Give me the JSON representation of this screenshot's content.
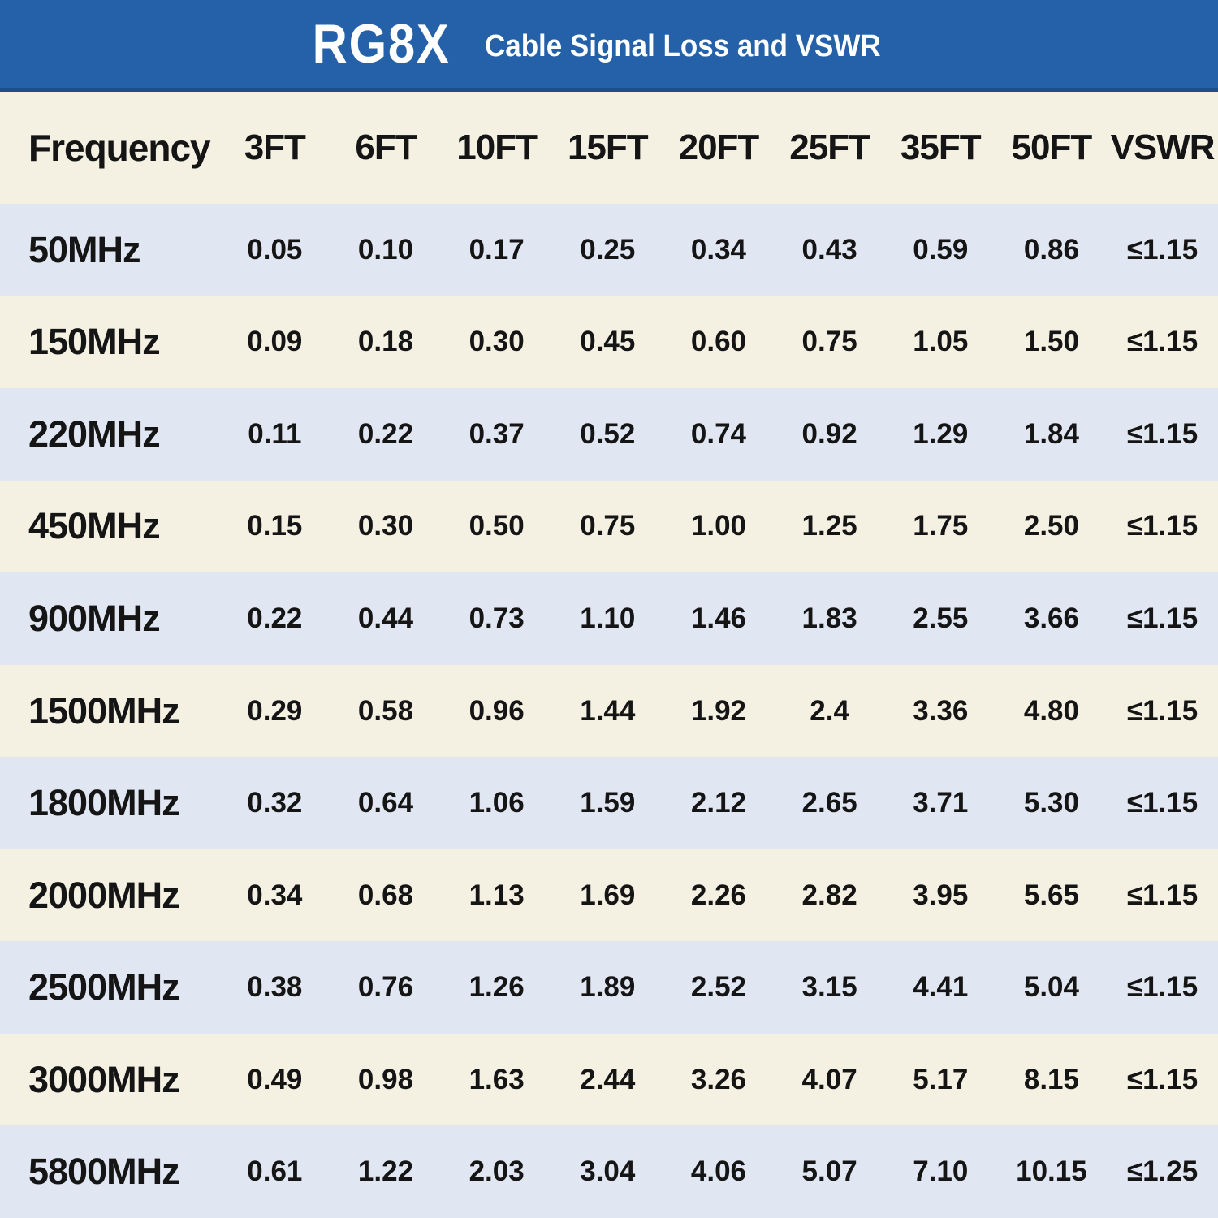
{
  "header": {
    "title": "RG8X",
    "subtitle": "Cable Signal Loss and VSWR"
  },
  "table": {
    "columns": [
      "Frequency",
      "3FT",
      "6FT",
      "10FT",
      "15FT",
      "20FT",
      "25FT",
      "35FT",
      "50FT",
      "VSWR"
    ],
    "rows": [
      {
        "frequency": "50MHz",
        "values": [
          "0.05",
          "0.10",
          "0.17",
          "0.25",
          "0.34",
          "0.43",
          "0.59",
          "0.86",
          "≤1.15"
        ]
      },
      {
        "frequency": "150MHz",
        "values": [
          "0.09",
          "0.18",
          "0.30",
          "0.45",
          "0.60",
          "0.75",
          "1.05",
          "1.50",
          "≤1.15"
        ]
      },
      {
        "frequency": "220MHz",
        "values": [
          "0.11",
          "0.22",
          "0.37",
          "0.52",
          "0.74",
          "0.92",
          "1.29",
          "1.84",
          "≤1.15"
        ]
      },
      {
        "frequency": "450MHz",
        "values": [
          "0.15",
          "0.30",
          "0.50",
          "0.75",
          "1.00",
          "1.25",
          "1.75",
          "2.50",
          "≤1.15"
        ]
      },
      {
        "frequency": "900MHz",
        "values": [
          "0.22",
          "0.44",
          "0.73",
          "1.10",
          "1.46",
          "1.83",
          "2.55",
          "3.66",
          "≤1.15"
        ]
      },
      {
        "frequency": "1500MHz",
        "values": [
          "0.29",
          "0.58",
          "0.96",
          "1.44",
          "1.92",
          "2.4",
          "3.36",
          "4.80",
          "≤1.15"
        ]
      },
      {
        "frequency": "1800MHz",
        "values": [
          "0.32",
          "0.64",
          "1.06",
          "1.59",
          "2.12",
          "2.65",
          "3.71",
          "5.30",
          "≤1.15"
        ]
      },
      {
        "frequency": "2000MHz",
        "values": [
          "0.34",
          "0.68",
          "1.13",
          "1.69",
          "2.26",
          "2.82",
          "3.95",
          "5.65",
          "≤1.15"
        ]
      },
      {
        "frequency": "2500MHz",
        "values": [
          "0.38",
          "0.76",
          "1.26",
          "1.89",
          "2.52",
          "3.15",
          "4.41",
          "5.04",
          "≤1.15"
        ]
      },
      {
        "frequency": "3000MHz",
        "values": [
          "0.49",
          "0.98",
          "1.63",
          "2.44",
          "3.26",
          "4.07",
          "5.17",
          "8.15",
          "≤1.15"
        ]
      },
      {
        "frequency": "5800MHz",
        "values": [
          "0.61",
          "1.22",
          "2.03",
          "3.04",
          "4.06",
          "5.07",
          "7.10",
          "10.15",
          "≤1.25"
        ]
      }
    ]
  },
  "colors": {
    "banner_blue": "#2561a8",
    "banner_border": "#1d4e8a",
    "row_light_blue": "#e1e6f3",
    "row_cream": "#f4f0e2",
    "text": "#151515",
    "banner_text": "#ffffff"
  },
  "chart_data": {
    "type": "table",
    "title": "RG8X Cable Signal Loss and VSWR",
    "columns": [
      "Frequency",
      "3FT",
      "6FT",
      "10FT",
      "15FT",
      "20FT",
      "25FT",
      "35FT",
      "50FT",
      "VSWR"
    ],
    "frequencies_mhz": [
      50,
      150,
      220,
      450,
      900,
      1500,
      1800,
      2000,
      2500,
      3000,
      5800
    ],
    "cable_lengths_ft": [
      3,
      6,
      10,
      15,
      20,
      25,
      35,
      50
    ],
    "signal_loss": [
      [
        0.05,
        0.1,
        0.17,
        0.25,
        0.34,
        0.43,
        0.59,
        0.86
      ],
      [
        0.09,
        0.18,
        0.3,
        0.45,
        0.6,
        0.75,
        1.05,
        1.5
      ],
      [
        0.11,
        0.22,
        0.37,
        0.52,
        0.74,
        0.92,
        1.29,
        1.84
      ],
      [
        0.15,
        0.3,
        0.5,
        0.75,
        1.0,
        1.25,
        1.75,
        2.5
      ],
      [
        0.22,
        0.44,
        0.73,
        1.1,
        1.46,
        1.83,
        2.55,
        3.66
      ],
      [
        0.29,
        0.58,
        0.96,
        1.44,
        1.92,
        2.4,
        3.36,
        4.8
      ],
      [
        0.32,
        0.64,
        1.06,
        1.59,
        2.12,
        2.65,
        3.71,
        5.3
      ],
      [
        0.34,
        0.68,
        1.13,
        1.69,
        2.26,
        2.82,
        3.95,
        5.65
      ],
      [
        0.38,
        0.76,
        1.26,
        1.89,
        2.52,
        3.15,
        4.41,
        5.04
      ],
      [
        0.49,
        0.98,
        1.63,
        2.44,
        3.26,
        4.07,
        5.17,
        8.15
      ],
      [
        0.61,
        1.22,
        2.03,
        3.04,
        4.06,
        5.07,
        7.1,
        10.15
      ]
    ],
    "vswr": [
      "≤1.15",
      "≤1.15",
      "≤1.15",
      "≤1.15",
      "≤1.15",
      "≤1.15",
      "≤1.15",
      "≤1.15",
      "≤1.15",
      "≤1.15",
      "≤1.25"
    ]
  }
}
